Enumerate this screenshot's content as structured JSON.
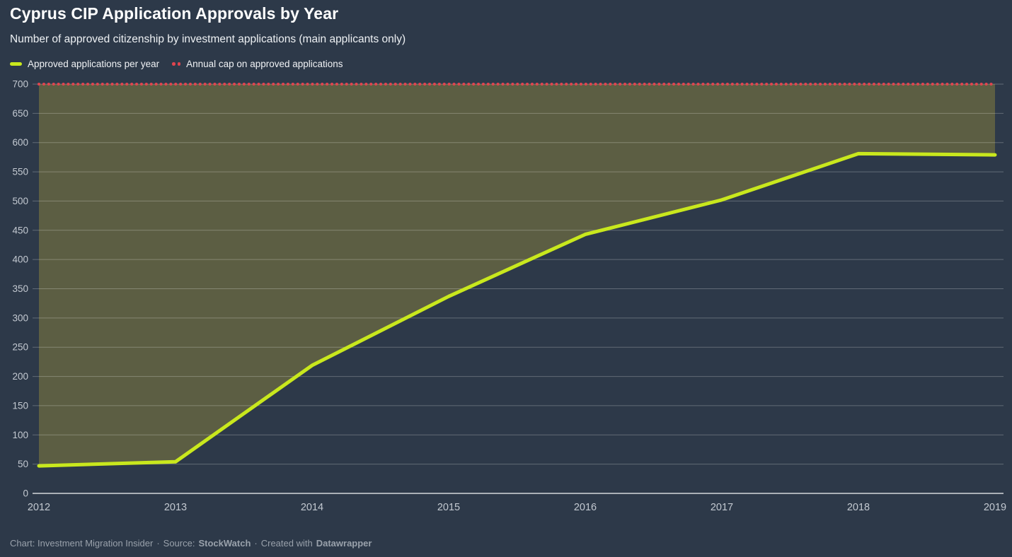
{
  "header": {
    "title": "Cyprus CIP Application Approvals by Year",
    "subtitle": "Number of approved citizenship by investment applications (main applicants only)"
  },
  "legend": {
    "items": [
      {
        "label": "Approved applications per year",
        "swatch": "line",
        "color": "#c9e81d"
      },
      {
        "label": "Annual cap on approved applications",
        "swatch": "dots",
        "color": "#e0454f"
      }
    ]
  },
  "footer": {
    "chart_credit": "Chart: Investment Migration Insider",
    "sep1": "·",
    "source_label": "Source:",
    "source": "StockWatch",
    "sep2": "·",
    "created_with": "Created with",
    "tool": "Datawrapper"
  },
  "colors": {
    "background": "#2d3949",
    "approved_line": "#c9e81d",
    "cap_line": "#e0454f",
    "area_fill": "#5c5e43",
    "gridline": "rgba(255,255,255,0.25)",
    "axis_line": "rgba(255,255,255,0.8)",
    "axis_label": "#c3c9d1",
    "footer_text": "#99a1ab"
  },
  "chart_data": {
    "type": "line",
    "title": "Cyprus CIP Application Approvals by Year",
    "subtitle": "Number of approved citizenship by investment applications (main applicants only)",
    "x": [
      2012,
      2013,
      2014,
      2015,
      2016,
      2017,
      2018,
      2019
    ],
    "series": [
      {
        "name": "Approved applications per year",
        "values": [
          47,
          54,
          219,
          337,
          443,
          502,
          581,
          579
        ],
        "color": "#c9e81d",
        "style": "solid",
        "area_fill_to_cap": true
      },
      {
        "name": "Annual cap on approved applications",
        "values": [
          700,
          700,
          700,
          700,
          700,
          700,
          700,
          700
        ],
        "color": "#e0454f",
        "style": "dotted"
      }
    ],
    "ylim": [
      0,
      700
    ],
    "ytick_step": 50,
    "grid": true,
    "legend_position": "top-left"
  }
}
